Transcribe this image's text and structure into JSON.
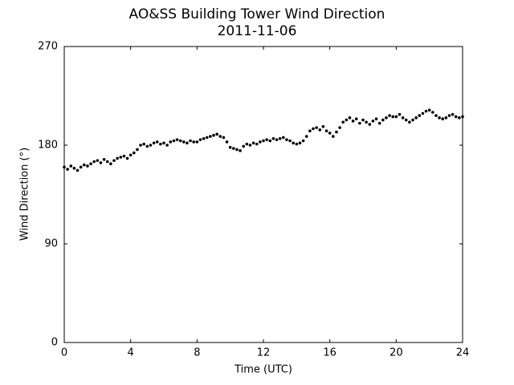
{
  "chart_data": {
    "type": "scatter",
    "title": "AO&SS Building Tower Wind Direction",
    "subtitle": "2011-11-06",
    "x_label": "Time (UTC)",
    "y_label": "Wind Direction (°)",
    "color": "#000000",
    "xlim": [
      0,
      24
    ],
    "xticks": [
      0,
      4,
      8,
      12,
      16,
      20,
      24
    ],
    "ylim": [
      0,
      270
    ],
    "yticks": [
      0,
      90,
      180,
      270
    ],
    "x": [
      0,
      0.2,
      0.4,
      0.6,
      0.8,
      1,
      1.2,
      1.4,
      1.6,
      1.8,
      2,
      2.2,
      2.4,
      2.6,
      2.8,
      3,
      3.2,
      3.4,
      3.6,
      3.8,
      4,
      4.2,
      4.4,
      4.6,
      4.8,
      5,
      5.2,
      5.4,
      5.6,
      5.8,
      6,
      6.2,
      6.4,
      6.6,
      6.8,
      7,
      7.2,
      7.4,
      7.6,
      7.8,
      8,
      8.2,
      8.4,
      8.6,
      8.8,
      9,
      9.2,
      9.4,
      9.6,
      9.8,
      10,
      10.2,
      10.4,
      10.6,
      10.8,
      11,
      11.2,
      11.4,
      11.6,
      11.8,
      12,
      12.2,
      12.4,
      12.6,
      12.8,
      13,
      13.2,
      13.4,
      13.6,
      13.8,
      14,
      14.2,
      14.4,
      14.6,
      14.8,
      15,
      15.2,
      15.4,
      15.6,
      15.8,
      16,
      16.2,
      16.4,
      16.6,
      16.8,
      17,
      17.2,
      17.4,
      17.6,
      17.8,
      18,
      18.2,
      18.4,
      18.6,
      18.8,
      19,
      19.2,
      19.4,
      19.6,
      19.8,
      20,
      20.2,
      20.4,
      20.6,
      20.8,
      21,
      21.2,
      21.4,
      21.6,
      21.8,
      22,
      22.2,
      22.4,
      22.6,
      22.8,
      23,
      23.2,
      23.4,
      23.6,
      23.8,
      24
    ],
    "values": [
      160,
      158,
      161,
      159,
      157,
      160,
      162,
      161,
      163,
      165,
      166,
      164,
      167,
      165,
      163,
      166,
      168,
      169,
      170,
      168,
      171,
      173,
      176,
      180,
      181,
      179,
      180,
      182,
      183,
      181,
      182,
      180,
      183,
      184,
      185,
      184,
      183,
      182,
      184,
      183,
      183,
      185,
      186,
      187,
      188,
      189,
      190,
      188,
      187,
      183,
      178,
      177,
      176,
      175,
      179,
      181,
      180,
      182,
      181,
      183,
      184,
      185,
      184,
      186,
      185,
      186,
      187,
      185,
      184,
      182,
      181,
      182,
      184,
      188,
      193,
      195,
      196,
      194,
      197,
      193,
      191,
      188,
      192,
      196,
      201,
      203,
      205,
      202,
      204,
      200,
      203,
      201,
      199,
      202,
      204,
      200,
      203,
      205,
      207,
      206,
      206,
      208,
      205,
      203,
      201,
      203,
      205,
      207,
      209,
      211,
      212,
      210,
      207,
      205,
      204,
      205,
      207,
      208,
      206,
      205,
      206
    ]
  }
}
